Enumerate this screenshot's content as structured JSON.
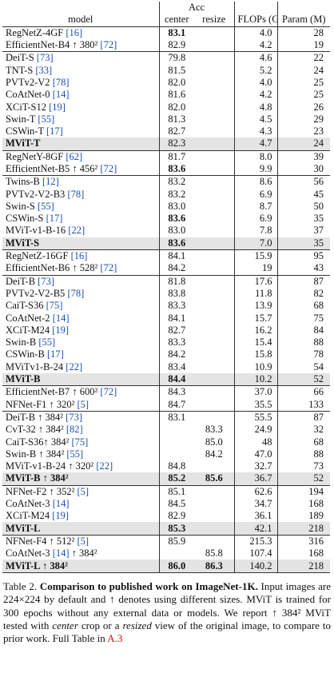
{
  "header": {
    "model": "model",
    "acc": "Acc",
    "center": "center",
    "resize": "resize",
    "flops": "FLOPs (G)",
    "params": "Param (M)"
  },
  "groups": [
    {
      "rows": [
        {
          "model": "RegNetZ-4GF",
          "cite": "[16]",
          "center": "83.1",
          "flops": "4.0",
          "params": "28",
          "bold": [
            "center"
          ]
        },
        {
          "model": "EfficientNet-B4 ↑ 380²",
          "cite": "[72]",
          "center": "82.9",
          "flops": "4.2",
          "params": "19"
        }
      ]
    },
    {
      "rows": [
        {
          "model": "DeiT-S",
          "cite": "[73]",
          "center": "79.8",
          "flops": "4.6",
          "params": "22"
        },
        {
          "model": "TNT-S",
          "cite": "[33]",
          "center": "81.5",
          "flops": "5.2",
          "params": "24"
        },
        {
          "model": "PVTv2-V2",
          "cite": "[78]",
          "center": "82.0",
          "flops": "4.0",
          "params": "25"
        },
        {
          "model": "CoAtNet-0",
          "cite": "[14]",
          "center": "81.6",
          "flops": "4.2",
          "params": "25"
        },
        {
          "model": "XCiT-S12",
          "cite": "[19]",
          "center": "82.0",
          "flops": "4.8",
          "params": "26"
        },
        {
          "model": "Swin-T",
          "cite": "[55]",
          "center": "81.3",
          "flops": "4.5",
          "params": "29"
        },
        {
          "model": "CSWin-T",
          "cite": "[17]",
          "center": "82.7",
          "flops": "4.3",
          "params": "23"
        },
        {
          "model": "MViT-T",
          "center": "82.3",
          "flops": "4.7",
          "params": "24",
          "bold": [
            "model"
          ],
          "highlight": true
        }
      ]
    },
    {
      "rows": [
        {
          "model": "RegNetY-8GF",
          "cite": "[62]",
          "center": "81.7",
          "flops": "8.0",
          "params": "39"
        },
        {
          "model": "EfficientNet-B5 ↑ 456²",
          "cite": "[72]",
          "center": "83.6",
          "flops": "9.9",
          "params": "30",
          "bold": [
            "center"
          ]
        }
      ]
    },
    {
      "rows": [
        {
          "model": "Twins-B",
          "cite": "[12]",
          "center": "83.2",
          "flops": "8.6",
          "params": "56"
        },
        {
          "model": "PVTv2-V2-B3",
          "cite": "[78]",
          "center": "83.2",
          "flops": "6.9",
          "params": "45"
        },
        {
          "model": "Swin-S",
          "cite": "[55]",
          "center": "83.0",
          "flops": "8.7",
          "params": "50"
        },
        {
          "model": "CSWin-S",
          "cite": "[17]",
          "center": "83.6",
          "flops": "6.9",
          "params": "35",
          "bold": [
            "center"
          ]
        },
        {
          "model": "MViT-v1-B-16",
          "cite": "[22]",
          "center": "83.0",
          "flops": "7.8",
          "params": "37"
        },
        {
          "model": "MViT-S",
          "center": "83.6",
          "flops": "7.0",
          "params": "35",
          "bold": [
            "model",
            "center"
          ],
          "highlight": true
        }
      ]
    },
    {
      "rows": [
        {
          "model": "RegNetZ-16GF",
          "cite": "[16]",
          "center": "84.1",
          "flops": "15.9",
          "params": "95"
        },
        {
          "model": "EfficientNet-B6 ↑ 528²",
          "cite": "[72]",
          "center": "84.2",
          "flops": "19",
          "params": "43"
        }
      ]
    },
    {
      "rows": [
        {
          "model": "DeiT-B",
          "cite": "[73]",
          "center": "81.8",
          "flops": "17.6",
          "params": "87"
        },
        {
          "model": "PVTv2-V2-B5",
          "cite": "[78]",
          "center": "83.8",
          "flops": "11.8",
          "params": "82"
        },
        {
          "model": "CaiT-S36",
          "cite": "[75]",
          "center": "83.3",
          "flops": "13.9",
          "params": "68"
        },
        {
          "model": "CoAtNet-2",
          "cite": "[14]",
          "center": "84.1",
          "flops": "15.7",
          "params": "75"
        },
        {
          "model": "XCiT-M24",
          "cite": "[19]",
          "center": "82.7",
          "flops": "16.2",
          "params": "84"
        },
        {
          "model": "Swin-B",
          "cite": "[55]",
          "center": "83.3",
          "flops": "15.4",
          "params": "88"
        },
        {
          "model": "CSWin-B",
          "cite": "[17]",
          "center": "84.2",
          "flops": "15.8",
          "params": "78"
        },
        {
          "model": "MViTv1-B-24",
          "cite": "[22]",
          "center": "83.4",
          "flops": "10.9",
          "params": "54"
        },
        {
          "model": "MViT-B",
          "center": "84.4",
          "flops": "10.2",
          "params": "52",
          "bold": [
            "model",
            "center"
          ],
          "highlight": true
        }
      ]
    },
    {
      "rows": [
        {
          "model": "EfficientNet-B7 ↑ 600²",
          "cite": "[72]",
          "center": "84.3",
          "flops": "37.0",
          "params": "66"
        },
        {
          "model": "NFNet-F1 ↑ 320²",
          "cite": "[5]",
          "center": "84.7",
          "flops": "35.5",
          "params": "133"
        }
      ]
    },
    {
      "rows": [
        {
          "model": "DeiT-B ↑ 384²",
          "cite": "[73]",
          "center": "83.1",
          "flops": "55.5",
          "params": "87"
        },
        {
          "model": "CvT-32 ↑ 384²",
          "cite": "[82]",
          "resize": "83.3",
          "flops": "24.9",
          "params": "32"
        },
        {
          "model": "CaiT-S36↑ 384²",
          "cite": "[75]",
          "resize": "85.0",
          "flops": "48",
          "params": "68"
        },
        {
          "model": "Swin-B ↑ 384²",
          "cite": "[55]",
          "resize": "84.2",
          "flops": "47.0",
          "params": "88"
        },
        {
          "model": "MViT-v1-B-24 ↑ 320²",
          "cite": "[22]",
          "center": "84.8",
          "flops": "32.7",
          "params": "73"
        },
        {
          "model": "MViT-B ↑ 384²",
          "center": "85.2",
          "resize": "85.6",
          "flops": "36.7",
          "params": "52",
          "bold": [
            "model",
            "center",
            "resize"
          ],
          "highlight": true
        }
      ]
    },
    {
      "rows": [
        {
          "model": "NFNet-F2 ↑ 352²",
          "cite": "[5]",
          "center": "85.1",
          "flops": "62.6",
          "params": "194"
        },
        {
          "model": "CoAtNet-3",
          "cite": "[14]",
          "center": "84.5",
          "flops": "34.7",
          "params": "168"
        },
        {
          "model": "XCiT-M24",
          "cite": "[19]",
          "center": "82.9",
          "flops": "36.1",
          "params": "189"
        },
        {
          "model": "MViT-L",
          "center": "85.3",
          "flops": "42.1",
          "params": "218",
          "bold": [
            "model",
            "center"
          ],
          "highlight": true
        }
      ]
    },
    {
      "rows": [
        {
          "model": "NFNet-F4 ↑ 512²",
          "cite": "[5]",
          "center": "85.9",
          "flops": "215.3",
          "params": "316"
        },
        {
          "model": "CoAtNet-3",
          "cite": "[14]",
          "suffix": "↑ 384²",
          "resize": "85.8",
          "flops": "107.4",
          "params": "168"
        },
        {
          "model": "MViT-L ↑ 384²",
          "center": "86.0",
          "resize": "86.3",
          "flops": "140.2",
          "params": "218",
          "bold": [
            "model",
            "center",
            "resize"
          ],
          "highlight": true
        }
      ]
    }
  ],
  "caption": [
    {
      "text": "Table 2. "
    },
    {
      "text": "Comparison to published work on ImageNet-1K.",
      "style": "bold"
    },
    {
      "text": " Input images are 224×224 by default and ↑ denotes using different sizes. MViT is trained for 300 epochs without any external data or models. We report ↑ 384² MViT tested with "
    },
    {
      "text": "center",
      "style": "italic"
    },
    {
      "text": " crop or a "
    },
    {
      "text": "resized",
      "style": "italic"
    },
    {
      "text": " view of the original image, to compare to prior work. Full Table in "
    },
    {
      "text": "A.3",
      "style": "link"
    }
  ]
}
